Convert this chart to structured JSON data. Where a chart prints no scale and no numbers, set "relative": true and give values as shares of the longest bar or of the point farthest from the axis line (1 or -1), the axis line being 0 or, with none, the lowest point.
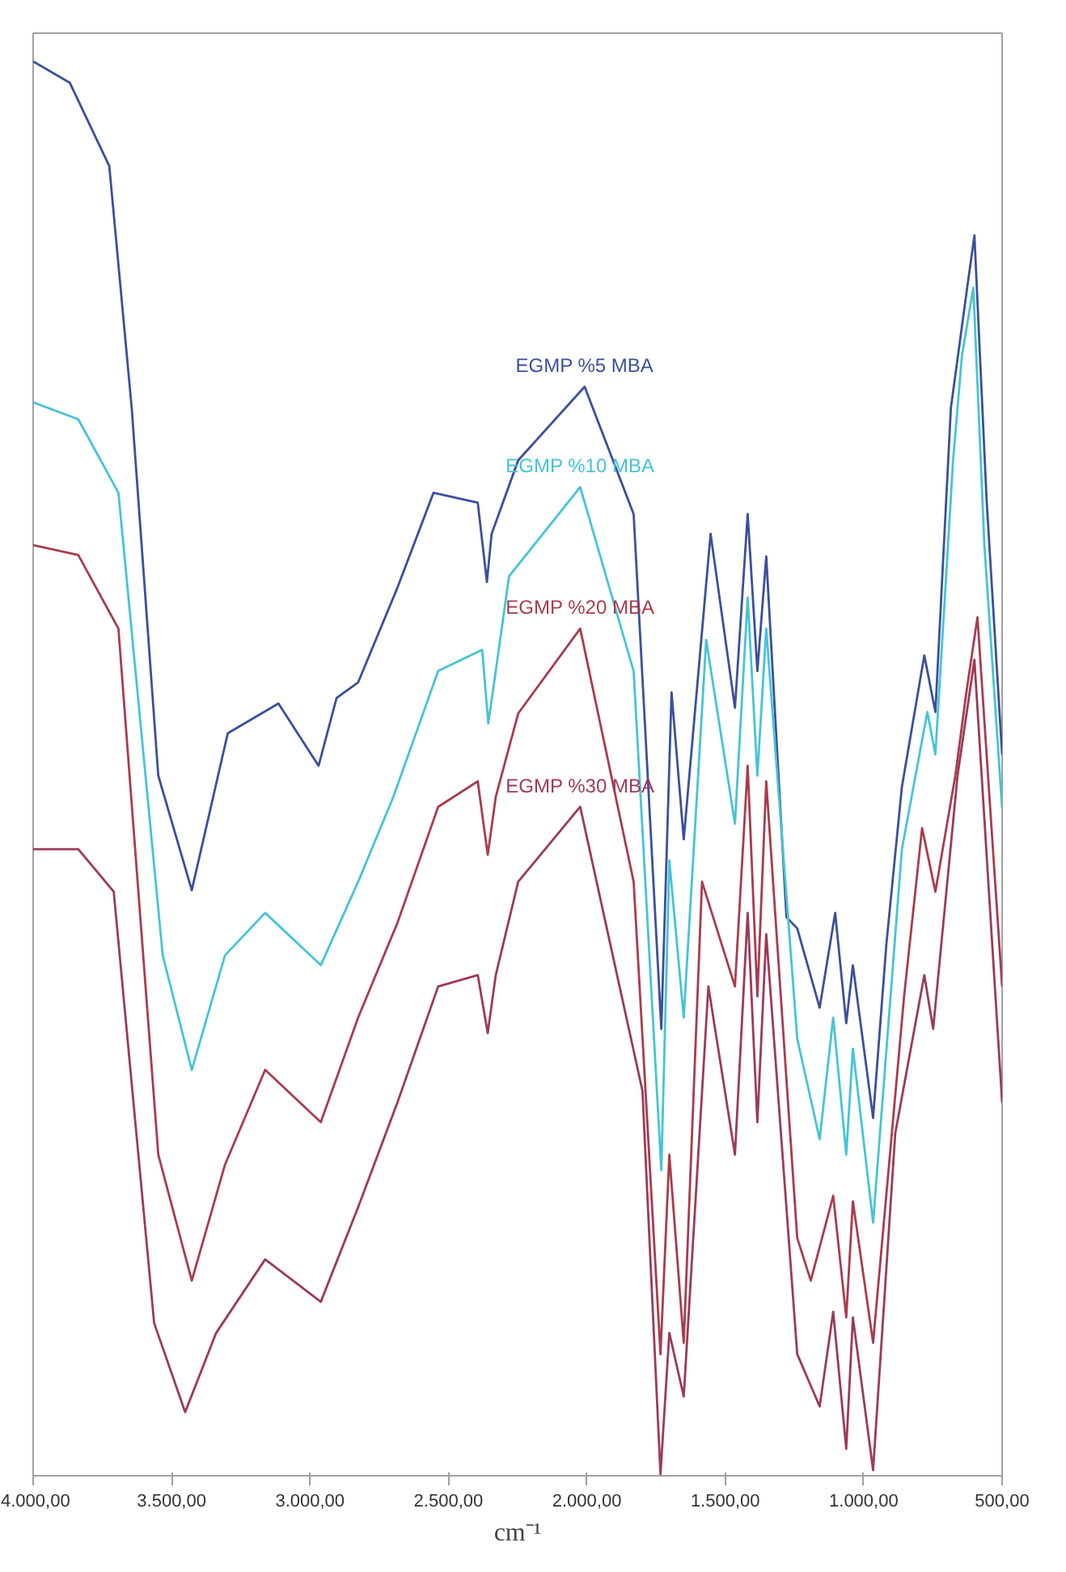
{
  "chart_data": {
    "type": "line",
    "relative": true,
    "xlabel": "cm⁻¹",
    "xlim": [
      4000,
      500
    ],
    "xticks": [
      {
        "value": 500,
        "label": "500,00"
      },
      {
        "value": 1000,
        "label": "1.000,00"
      },
      {
        "value": 1500,
        "label": "1.500,00"
      },
      {
        "value": 2000,
        "label": "2.000,00"
      },
      {
        "value": 2500,
        "label": "2.500,00"
      },
      {
        "value": 3000,
        "label": "3.000,00"
      },
      {
        "value": 3500,
        "label": "3.500,00"
      },
      {
        "value": 4000,
        "label": "4.000,00"
      }
    ],
    "grid": false,
    "marker": "none",
    "line_style": "solid",
    "series": [
      {
        "name": "EGMP %5 MBA",
        "color": "#3b4f9c",
        "x": [
          500,
          556,
          600,
          629,
          685,
          741,
          781,
          862,
          918,
          966,
          1039,
          1063,
          1103,
          1159,
          1240,
          1279,
          1352,
          1384,
          1419,
          1465,
          1553,
          1650,
          1694,
          1731,
          1831,
          2008,
          2248,
          2344,
          2361,
          2394,
          2554,
          2684,
          2826,
          2904,
          2969,
          3114,
          3297,
          3427,
          3548,
          3644,
          3725,
          3868,
          4000
        ],
        "values": [
          0.51,
          0.69,
          0.877,
          0.836,
          0.755,
          0.54,
          0.58,
          0.487,
          0.376,
          0.253,
          0.361,
          0.32,
          0.398,
          0.331,
          0.387,
          0.395,
          0.65,
          0.569,
          0.68,
          0.543,
          0.666,
          0.45,
          0.554,
          0.316,
          0.68,
          0.77,
          0.718,
          0.666,
          0.632,
          0.688,
          0.695,
          0.628,
          0.561,
          0.55,
          0.502,
          0.546,
          0.525,
          0.414,
          0.495,
          0.755,
          0.926,
          0.985,
          1.0
        ]
      },
      {
        "name": "EGMP %10 MBA",
        "color": "#45c4d6",
        "x": [
          500,
          564,
          604,
          645,
          677,
          741,
          770,
          862,
          966,
          1039,
          1063,
          1110,
          1159,
          1240,
          1352,
          1384,
          1419,
          1465,
          1569,
          1650,
          1702,
          1731,
          1831,
          2024,
          2281,
          2329,
          2356,
          2378,
          2537,
          2699,
          2826,
          2961,
          3162,
          3307,
          3427,
          3532,
          3692,
          3837,
          4000
        ],
        "values": [
          0.472,
          0.658,
          0.84,
          0.792,
          0.718,
          0.51,
          0.54,
          0.443,
          0.179,
          0.302,
          0.227,
          0.324,
          0.238,
          0.309,
          0.599,
          0.495,
          0.621,
          0.461,
          0.591,
          0.324,
          0.435,
          0.216,
          0.569,
          0.699,
          0.636,
          0.569,
          0.532,
          0.584,
          0.569,
          0.48,
          0.42,
          0.361,
          0.398,
          0.368,
          0.287,
          0.368,
          0.695,
          0.747,
          0.759
        ]
      },
      {
        "name": "EGMP %20 MBA",
        "color": "#a83c4c",
        "x": [
          500,
          589,
          629,
          669,
          741,
          789,
          854,
          966,
          1039,
          1063,
          1110,
          1191,
          1240,
          1352,
          1384,
          1419,
          1465,
          1584,
          1650,
          1702,
          1734,
          1831,
          2024,
          2248,
          2329,
          2358,
          2394,
          2537,
          2684,
          2826,
          2961,
          3162,
          3307,
          3427,
          3548,
          3692,
          3837,
          4000
        ],
        "values": [
          0.346,
          0.607,
          0.554,
          0.495,
          0.413,
          0.458,
          0.339,
          0.094,
          0.194,
          0.112,
          0.198,
          0.138,
          0.168,
          0.491,
          0.339,
          0.502,
          0.346,
          0.42,
          0.094,
          0.227,
          0.086,
          0.42,
          0.599,
          0.539,
          0.48,
          0.439,
          0.491,
          0.473,
          0.391,
          0.324,
          0.25,
          0.287,
          0.22,
          0.138,
          0.227,
          0.599,
          0.651,
          0.658
        ]
      },
      {
        "name": "EGMP %30 MBA",
        "color": "#9c3a58",
        "x": [
          500,
          600,
          661,
          749,
          781,
          886,
          966,
          1039,
          1063,
          1110,
          1159,
          1240,
          1352,
          1384,
          1419,
          1465,
          1561,
          1650,
          1702,
          1734,
          1799,
          2024,
          2248,
          2329,
          2358,
          2394,
          2537,
          2684,
          2826,
          2961,
          3162,
          3339,
          3451,
          3563,
          3709,
          3837,
          4000
        ],
        "values": [
          0.264,
          0.577,
          0.495,
          0.316,
          0.354,
          0.242,
          0.004,
          0.112,
          0.019,
          0.116,
          0.049,
          0.086,
          0.383,
          0.25,
          0.398,
          0.227,
          0.346,
          0.056,
          0.101,
          0.001,
          0.272,
          0.473,
          0.42,
          0.354,
          0.313,
          0.354,
          0.346,
          0.264,
          0.19,
          0.123,
          0.153,
          0.101,
          0.045,
          0.108,
          0.413,
          0.443,
          0.443
        ]
      }
    ]
  }
}
